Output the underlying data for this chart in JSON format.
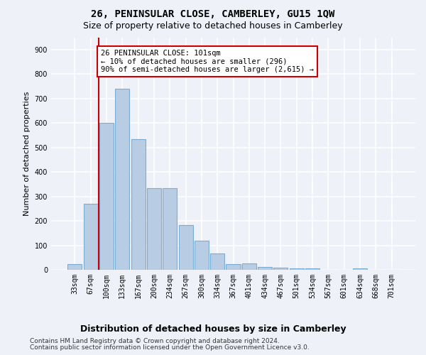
{
  "title": "26, PENINSULAR CLOSE, CAMBERLEY, GU15 1QW",
  "subtitle": "Size of property relative to detached houses in Camberley",
  "xlabel": "Distribution of detached houses by size in Camberley",
  "ylabel": "Number of detached properties",
  "categories": [
    "33sqm",
    "67sqm",
    "100sqm",
    "133sqm",
    "167sqm",
    "200sqm",
    "234sqm",
    "267sqm",
    "300sqm",
    "334sqm",
    "367sqm",
    "401sqm",
    "434sqm",
    "467sqm",
    "501sqm",
    "534sqm",
    "567sqm",
    "601sqm",
    "634sqm",
    "668sqm",
    "701sqm"
  ],
  "values": [
    22,
    270,
    600,
    740,
    535,
    335,
    335,
    182,
    120,
    68,
    22,
    25,
    12,
    10,
    7,
    6,
    0,
    0,
    5,
    0,
    0
  ],
  "bar_color": "#b8cce4",
  "bar_edge_color": "#7aadd4",
  "vline_x_index": 1.5,
  "vline_color": "#cc0000",
  "annotation_text": "26 PENINSULAR CLOSE: 101sqm\n← 10% of detached houses are smaller (296)\n90% of semi-detached houses are larger (2,615) →",
  "annotation_box_color": "#ffffff",
  "annotation_box_edge": "#cc0000",
  "ylim": [
    0,
    950
  ],
  "yticks": [
    0,
    100,
    200,
    300,
    400,
    500,
    600,
    700,
    800,
    900
  ],
  "footer1": "Contains HM Land Registry data © Crown copyright and database right 2024.",
  "footer2": "Contains public sector information licensed under the Open Government Licence v3.0.",
  "bg_color": "#eef2f8",
  "grid_color": "#ffffff",
  "title_fontsize": 10,
  "subtitle_fontsize": 9,
  "tick_fontsize": 7,
  "ylabel_fontsize": 8,
  "xlabel_fontsize": 9,
  "footer_fontsize": 6.5
}
